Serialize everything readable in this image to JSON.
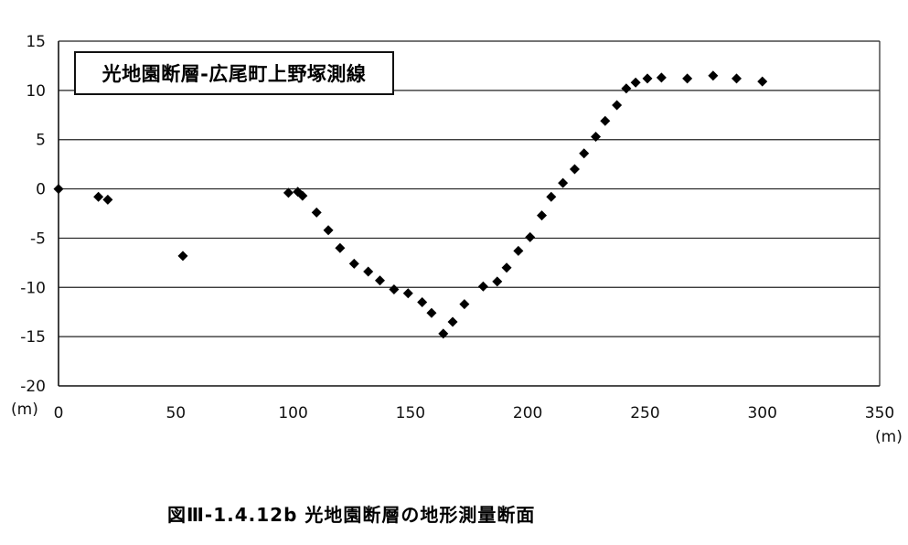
{
  "caption": "図Ⅲ-1.4.12b 光地園断層の地形測量断面",
  "chart_data": {
    "type": "scatter",
    "title": "光地園断層-広尾町上野塚測線",
    "x_unit": "(m)",
    "y_unit": "(m)",
    "xlim": [
      0,
      350
    ],
    "ylim": [
      -20,
      15
    ],
    "x_ticks": [
      0,
      50,
      100,
      150,
      200,
      250,
      300,
      350
    ],
    "y_ticks": [
      15,
      10,
      5,
      0,
      -5,
      -10,
      -15,
      -20
    ],
    "grid": "horizontal",
    "marker": "diamond",
    "marker_color": "#000000",
    "series": [
      {
        "points": [
          [
            0,
            0.0
          ],
          [
            17,
            -0.8
          ],
          [
            21,
            -1.1
          ],
          [
            53,
            -6.8
          ],
          [
            98,
            -0.4
          ],
          [
            102,
            -0.3
          ],
          [
            104,
            -0.7
          ],
          [
            110,
            -2.4
          ],
          [
            115,
            -4.2
          ],
          [
            120,
            -6.0
          ],
          [
            126,
            -7.6
          ],
          [
            132,
            -8.4
          ],
          [
            137,
            -9.3
          ],
          [
            143,
            -10.2
          ],
          [
            149,
            -10.6
          ],
          [
            155,
            -11.5
          ],
          [
            159,
            -12.6
          ],
          [
            164,
            -14.7
          ],
          [
            168,
            -13.5
          ],
          [
            173,
            -11.7
          ],
          [
            181,
            -9.9
          ],
          [
            187,
            -9.4
          ],
          [
            191,
            -8.0
          ],
          [
            196,
            -6.3
          ],
          [
            201,
            -4.9
          ],
          [
            206,
            -2.7
          ],
          [
            210,
            -0.8
          ],
          [
            215,
            0.6
          ],
          [
            220,
            2.0
          ],
          [
            224,
            3.6
          ],
          [
            229,
            5.3
          ],
          [
            233,
            6.9
          ],
          [
            238,
            8.5
          ],
          [
            242,
            10.2
          ],
          [
            246,
            10.8
          ],
          [
            251,
            11.2
          ],
          [
            257,
            11.3
          ],
          [
            268,
            11.2
          ],
          [
            279,
            11.5
          ],
          [
            289,
            11.2
          ],
          [
            300,
            10.9
          ]
        ]
      }
    ]
  }
}
